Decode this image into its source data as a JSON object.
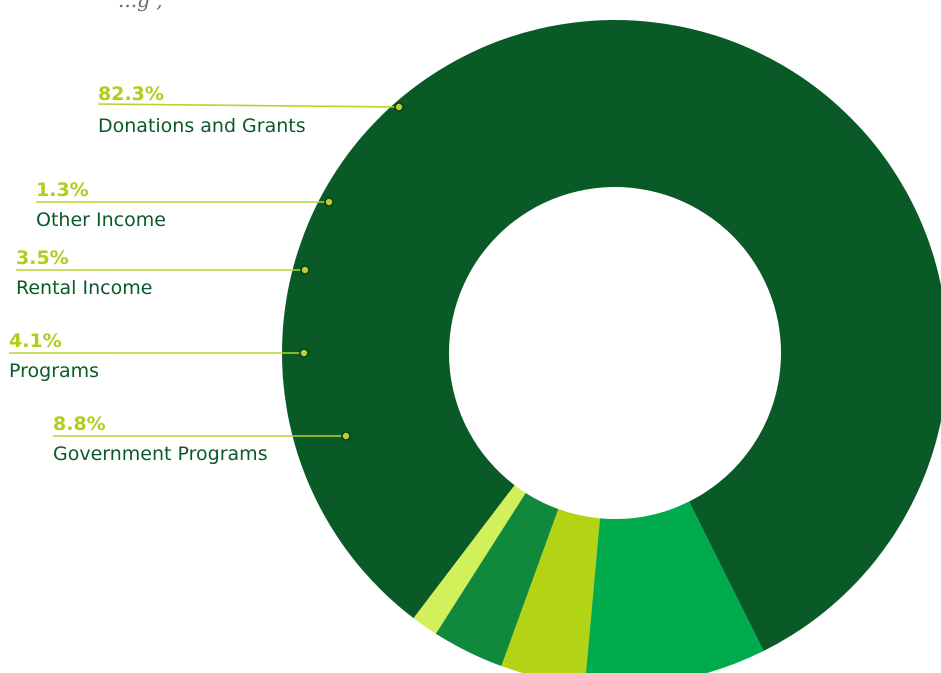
{
  "header_fragment": "...g ,",
  "colors": {
    "label_text": "#0a5a2a",
    "percent_text": "#b2cc1c",
    "leader_line": "#b8d42a"
  },
  "chart_data": {
    "type": "pie",
    "donut": true,
    "start_angle_deg": -63.5,
    "direction": "counterclockwise",
    "slices": [
      {
        "label": "Donations and Grants",
        "value": 82.3,
        "value_label": "82.3%",
        "color": "#0a5a28"
      },
      {
        "label": "Other Income",
        "value": 1.3,
        "value_label": "1.3%",
        "color": "#d2f05a"
      },
      {
        "label": "Rental Income",
        "value": 3.5,
        "value_label": "3.5%",
        "color": "#11893d"
      },
      {
        "label": "Programs",
        "value": 4.1,
        "value_label": "4.1%",
        "color": "#b2d414"
      },
      {
        "label": "Government Programs",
        "value": 8.8,
        "value_label": "8.8%",
        "color": "#00ab4e"
      }
    ]
  }
}
